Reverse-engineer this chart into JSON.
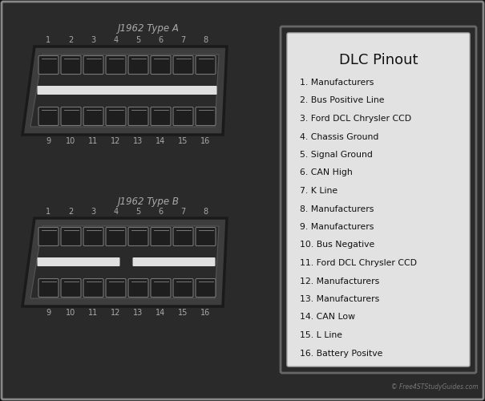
{
  "background_color": "#111111",
  "outer_border_color": "#888888",
  "outer_border_bg": "#1e1e1e",
  "connector_a_label": "J1962 Type A",
  "connector_b_label": "J1962 Type B",
  "pinout_title": "DLC Pinout",
  "pinout_items": [
    "1. Manufacturers",
    "2. Bus Positive Line",
    "3. Ford DCL Chrysler CCD",
    "4. Chassis Ground",
    "5. Signal Ground",
    "6. CAN High",
    "7. K Line",
    "8. Manufacturers",
    "9. Manufacturers",
    "10. Bus Negative",
    "11. Ford DCL Chrysler CCD",
    "12. Manufacturers",
    "13. Manufacturers",
    "14. CAN Low",
    "15. L Line",
    "16. Battery Positve"
  ],
  "watermark": "© Free4STStudyGuides.com",
  "box_bg": "#e0e0e0",
  "box_border_outer": "#555555",
  "box_border_inner": "#aaaaaa",
  "conn_body_color": "#4a4a4a",
  "conn_body_edge": "#222222",
  "conn_inner_color": "#3a3a3a",
  "pin_face": "#1a1a1a",
  "pin_edge": "#888888",
  "pin_grad_top": "#666666",
  "stripe_a_color": "#e8e8e8",
  "stripe_b_color": "#cccccc",
  "label_color": "#aaaaaa",
  "pinout_text_color": "#111111",
  "watermark_color": "#777777"
}
